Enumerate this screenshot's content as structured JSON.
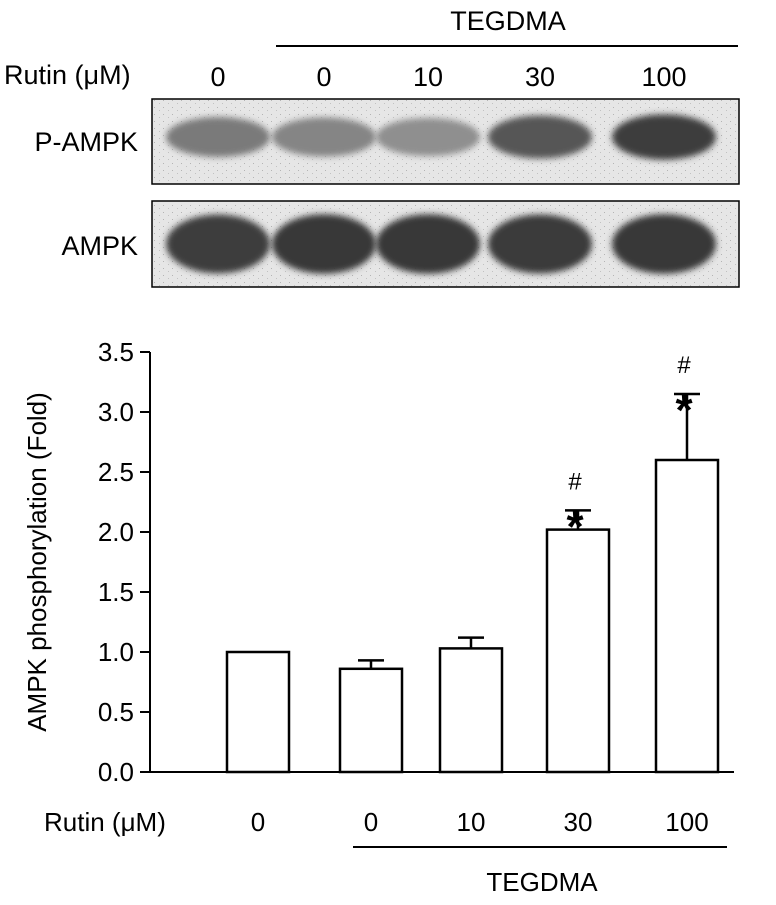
{
  "blot": {
    "treatment_label": "TEGDMA",
    "dose_label": "Rutin (μM)",
    "doses": [
      "0",
      "0",
      "10",
      "30",
      "100"
    ],
    "rows": [
      {
        "label": "P-AMPK",
        "intensities": [
          0.55,
          0.5,
          0.45,
          0.72,
          0.85
        ]
      },
      {
        "label": "AMPK",
        "intensities": [
          0.85,
          0.88,
          0.88,
          0.86,
          0.88
        ]
      }
    ]
  },
  "chart_data": {
    "type": "bar",
    "categories": [
      "0",
      "0",
      "10",
      "30",
      "100"
    ],
    "values": [
      1.0,
      0.86,
      1.03,
      2.02,
      2.6
    ],
    "errors": [
      0.0,
      0.07,
      0.09,
      0.16,
      0.55
    ],
    "ylabel": "AMPK phosphorylation (Fold)",
    "xlabel": "Rutin (μM)",
    "ylim": [
      0,
      3.5
    ],
    "yticks": [
      "0.0",
      "0.5",
      "1.0",
      "1.5",
      "2.0",
      "2.5",
      "3.0",
      "3.5"
    ],
    "group_label": "TEGDMA",
    "group_categories": [
      1,
      4
    ],
    "annotations": [
      {
        "category_index": 3,
        "marks": [
          "#",
          "*"
        ]
      },
      {
        "category_index": 4,
        "marks": [
          "#",
          "*"
        ]
      }
    ],
    "grid": false
  }
}
